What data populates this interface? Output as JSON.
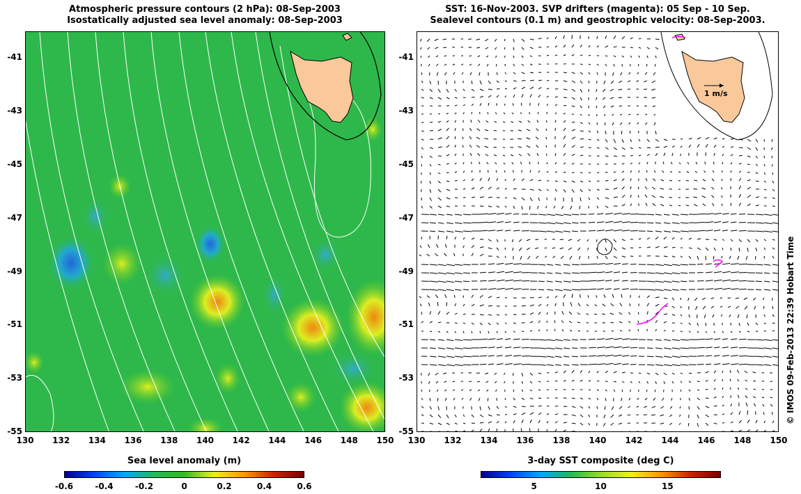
{
  "left_panel": {
    "title_line1": "Atmospheric pressure contours (2 hPa): 08-Sep-2003",
    "title_line2": "Isostatically adjusted sea level anomaly: 08-Sep-2003",
    "colorbar": {
      "label": "Sea level anomaly (m)",
      "ticks": [
        "-0.6",
        "-0.4",
        "-0.2",
        "0",
        "0.2",
        "0.4",
        "0.6"
      ],
      "colors": [
        "#00008c",
        "#0044ff",
        "#00aaff",
        "#22bb55",
        "#33bb22",
        "#eeee22",
        "#ff9900",
        "#cc2200",
        "#7a0000"
      ]
    }
  },
  "right_panel": {
    "title_line1": "SST: 16-Nov-2003. SVP drifters (magenta): 05 Sep - 10 Sep.",
    "title_line2": "Sealevel contours (0.1 m) and geostrophic velocity: 08-Sep-2003.",
    "scale_label": "1 m/s",
    "colorbar": {
      "label": "3-day SST composite (deg C)",
      "ticks": [
        "5",
        "10",
        "15"
      ],
      "colors": [
        "#00008c",
        "#0044ff",
        "#00aaff",
        "#22bb55",
        "#99dd22",
        "#eeee22",
        "#ff9900",
        "#cc2200",
        "#7a0000"
      ]
    }
  },
  "axes": {
    "lon_ticks": [
      "130",
      "132",
      "134",
      "136",
      "138",
      "140",
      "142",
      "144",
      "146",
      "148",
      "150"
    ],
    "lat_ticks": [
      "-41",
      "-43",
      "-45",
      "-47",
      "-49",
      "-51",
      "-53",
      "-55"
    ]
  },
  "credit": "© IMOS 09-Feb-2013 22:39 Hobart Time",
  "colors": {
    "land": "#f9c89b",
    "sea_green": "#2eb84b",
    "contour_white": "#ffffff",
    "drifter": "#ff00ff"
  }
}
